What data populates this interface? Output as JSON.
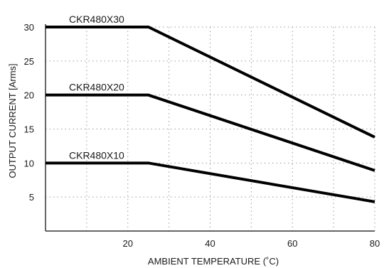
{
  "chart_data": {
    "type": "line",
    "xlabel": "AMBIENT TEMPERATURE (˚C)",
    "ylabel": "OUTPUT CURRENT [Arms]",
    "xlim": [
      0,
      80
    ],
    "ylim": [
      0,
      30
    ],
    "x_ticks": [
      20,
      40,
      60,
      80
    ],
    "y_ticks": [
      5,
      10,
      15,
      20,
      25,
      30
    ],
    "grid": true,
    "series": [
      {
        "name": "CKR480X30",
        "x": [
          0,
          25,
          80
        ],
        "y": [
          30,
          30,
          13.8
        ]
      },
      {
        "name": "CKR480X20",
        "x": [
          0,
          25,
          80
        ],
        "y": [
          20,
          20,
          8.9
        ]
      },
      {
        "name": "CKR480X10",
        "x": [
          0,
          25,
          80
        ],
        "y": [
          10,
          10,
          4.3
        ]
      }
    ],
    "colors": {
      "line": "#000000",
      "grid": "#9a9a9a",
      "axis": "#333333"
    }
  }
}
